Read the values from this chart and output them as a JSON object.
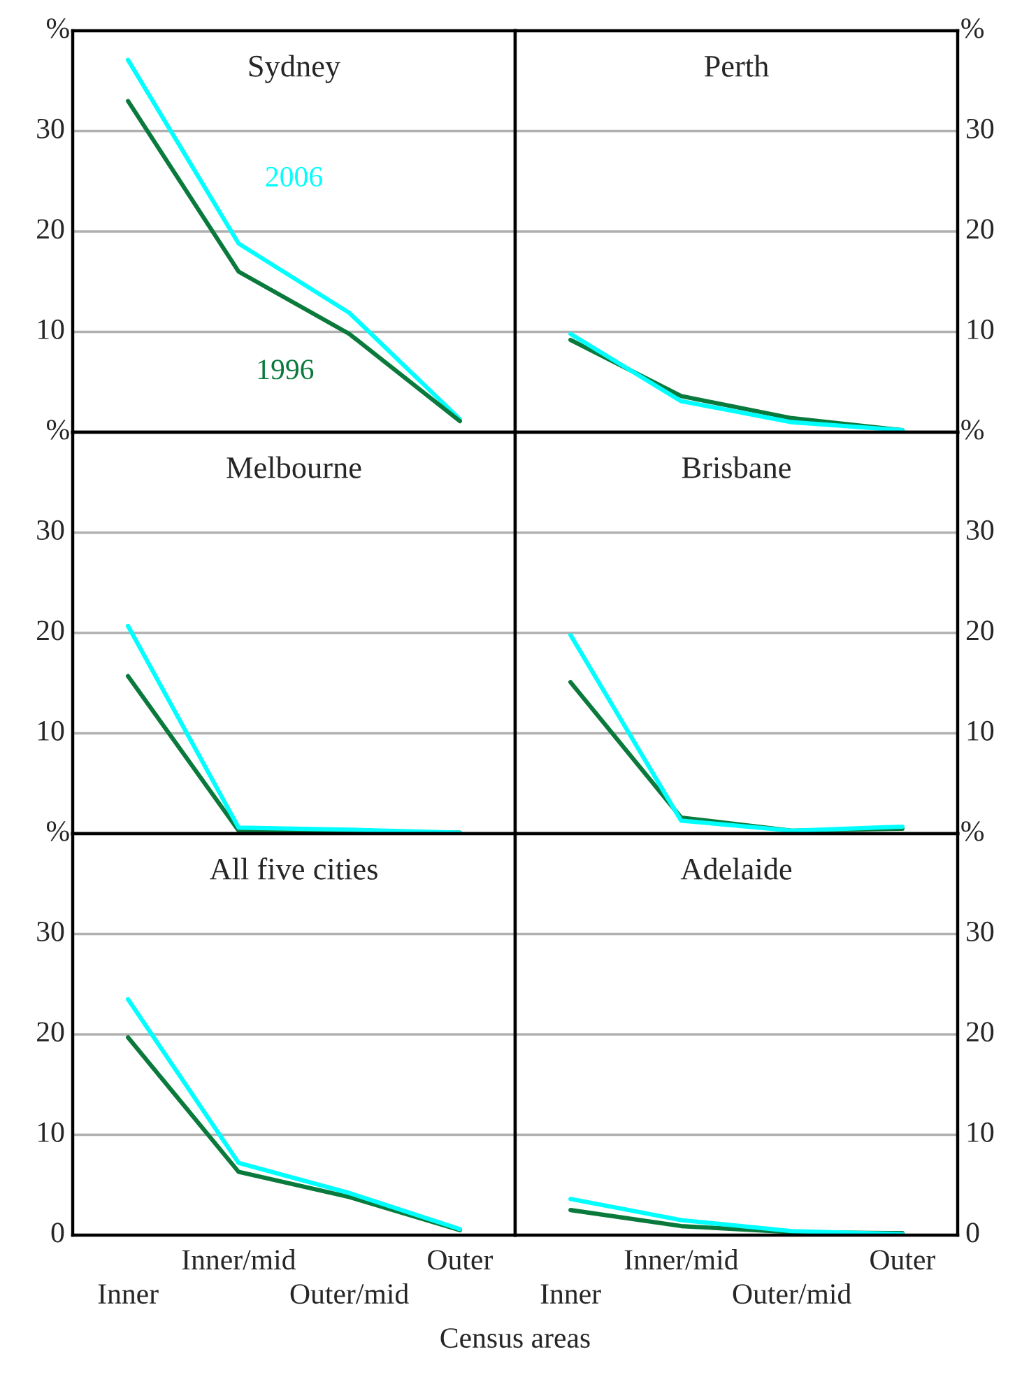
{
  "chart_data": [
    {
      "type": "line",
      "title": "Sydney",
      "ylabel": "%",
      "categories": [
        null,
        null,
        null,
        null
      ],
      "ylim": [
        0,
        40
      ],
      "yticks": [
        10,
        20,
        30
      ],
      "grid": "y",
      "tick_labels": "y",
      "legend": false,
      "series": [
        {
          "name": "2006",
          "color": "#00ffff",
          "values": [
            37.1,
            18.8,
            11.9,
            1.3
          ]
        },
        {
          "name": "1996",
          "color": "#0a7a3c",
          "values": [
            33.0,
            16.0,
            9.8,
            1.1
          ]
        }
      ]
    },
    {
      "type": "line",
      "title": "Perth",
      "ylabel": "%",
      "categories": [
        null,
        null,
        null,
        null
      ],
      "ylim": [
        0,
        40
      ],
      "yticks": [
        10,
        20,
        30
      ],
      "grid": "y",
      "tick_labels": "y",
      "legend": false,
      "series": [
        {
          "color": "#0a7a3c",
          "values": [
            9.2,
            3.6,
            1.4,
            0.2
          ]
        },
        {
          "color": "#00ffff",
          "values": [
            9.8,
            3.1,
            1.0,
            0.2
          ]
        }
      ]
    },
    {
      "type": "line",
      "title": "Melbourne",
      "ylabel": "%",
      "categories": [
        null,
        null,
        null,
        null
      ],
      "ylim": [
        0,
        40
      ],
      "yticks": [
        10,
        20,
        30
      ],
      "grid": "y",
      "tick_labels": "y",
      "legend": false,
      "series": [
        {
          "color": "#0a7a3c",
          "values": [
            15.7,
            0.3,
            0.2,
            0.1
          ]
        },
        {
          "color": "#00ffff",
          "values": [
            20.7,
            0.6,
            0.4,
            0.1
          ]
        }
      ]
    },
    {
      "type": "line",
      "title": "Brisbane",
      "ylabel": "%",
      "categories": [
        null,
        null,
        null,
        null
      ],
      "ylim": [
        0,
        40
      ],
      "yticks": [
        10,
        20,
        30
      ],
      "grid": "y",
      "tick_labels": "y",
      "legend": false,
      "series": [
        {
          "color": "#0a7a3c",
          "values": [
            15.1,
            1.6,
            0.3,
            0.5
          ]
        },
        {
          "color": "#00ffff",
          "values": [
            19.8,
            1.3,
            0.3,
            0.7
          ]
        }
      ]
    },
    {
      "type": "line",
      "title": "All five cities",
      "ylabel": "%",
      "xlabel": "Census areas",
      "categories": [
        "Inner",
        "Inner/mid",
        "Outer/mid",
        "Outer"
      ],
      "ylim": [
        0,
        40
      ],
      "yticks": [
        0,
        10,
        20,
        30
      ],
      "grid": "y",
      "legend": false,
      "series": [
        {
          "color": "#0a7a3c",
          "values": [
            19.7,
            6.3,
            3.8,
            0.5
          ]
        },
        {
          "color": "#00ffff",
          "values": [
            23.5,
            7.2,
            4.2,
            0.6
          ]
        }
      ]
    },
    {
      "type": "line",
      "title": "Adelaide",
      "ylabel": "%",
      "categories": [
        "Inner",
        "Inner/mid",
        "Outer/mid",
        "Outer"
      ],
      "ylim": [
        0,
        40
      ],
      "yticks": [
        0,
        10,
        20,
        30
      ],
      "grid": "y",
      "legend": false,
      "series": [
        {
          "color": "#0a7a3c",
          "values": [
            2.5,
            0.9,
            0.3,
            0.2
          ]
        },
        {
          "color": "#00ffff",
          "values": [
            3.6,
            1.5,
            0.4,
            0.1
          ]
        }
      ]
    }
  ]
}
